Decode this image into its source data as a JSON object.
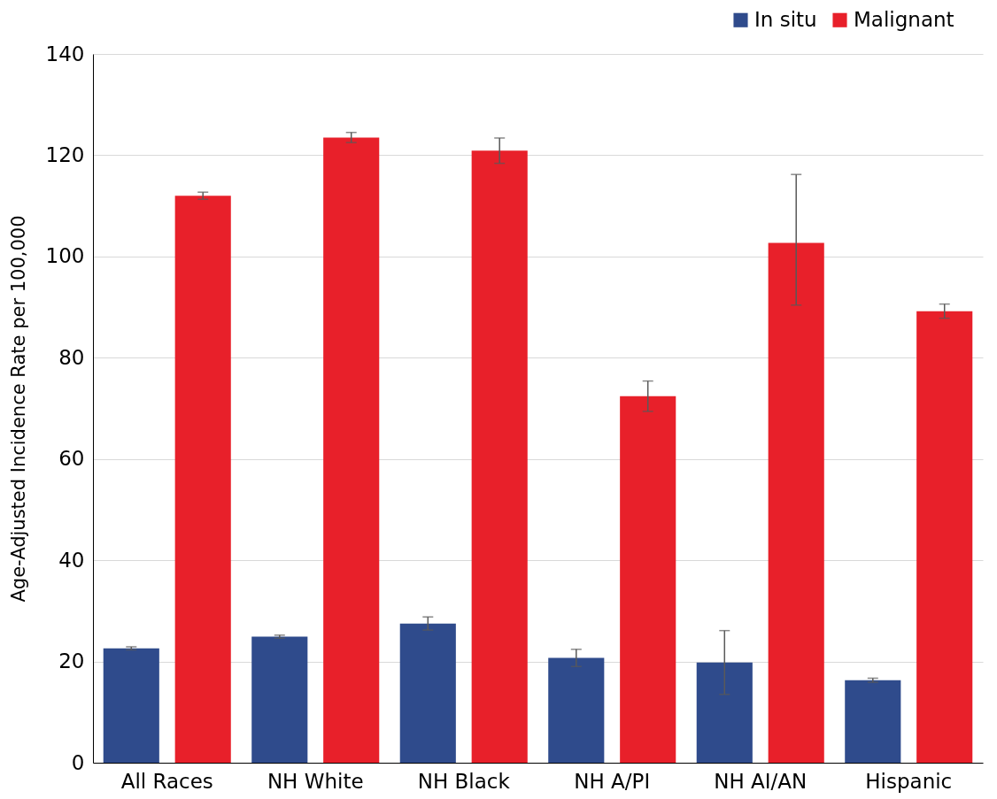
{
  "chart_data": {
    "type": "bar",
    "ylabel": "Age-Adjusted Incidence Rate per 100,000",
    "categories": [
      "All Races",
      "NH White",
      "NH Black",
      "NH A/PI",
      "NH AI/AN",
      "Hispanic"
    ],
    "series": [
      {
        "name": "In situ",
        "color": "#2f4b8c",
        "values": [
          22.6,
          24.9,
          27.5,
          20.7,
          19.8,
          16.3
        ],
        "errors": [
          0.3,
          0.3,
          1.3,
          1.7,
          6.3,
          0.4
        ]
      },
      {
        "name": "Malignant",
        "color": "#e8202a",
        "values": [
          112.0,
          123.5,
          120.9,
          72.4,
          102.7,
          89.2
        ],
        "errors": [
          0.7,
          1.0,
          2.5,
          3.0,
          [
            90.4,
            116.2
          ],
          1.4
        ]
      }
    ],
    "ylim": [
      0,
      140
    ],
    "yticks": [
      0,
      20,
      40,
      60,
      80,
      100,
      120,
      140
    ],
    "grid": "y",
    "legend": "top right"
  }
}
